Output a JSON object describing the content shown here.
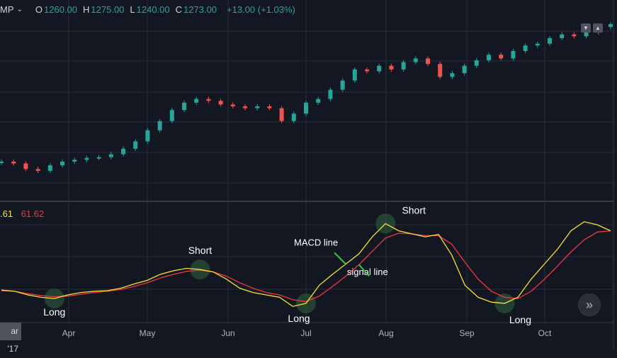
{
  "header": {
    "symbol": "MP",
    "ohlc": [
      {
        "k": "O",
        "v": "1260.00"
      },
      {
        "k": "H",
        "v": "1275.00"
      },
      {
        "k": "L",
        "v": "1240.00"
      },
      {
        "k": "C",
        "v": "1273.00"
      }
    ],
    "change": "+13.00 (+1.03%)"
  },
  "indicator": {
    "macd_value": ".61",
    "signal_value": "61.62"
  },
  "axis": {
    "current_date": "ar '17"
  },
  "chart_data": [
    {
      "type": "line",
      "name": "price",
      "x_ticks": [
        "Apr",
        "May",
        "Jun",
        "Jul",
        "Aug",
        "Sep",
        "Oct"
      ],
      "x": [
        0,
        5,
        10,
        15,
        20,
        25,
        30,
        35,
        40,
        45,
        50,
        55,
        60,
        65,
        70,
        75,
        80,
        85,
        90,
        95,
        100,
        105,
        110,
        115,
        120,
        125,
        130,
        135,
        140,
        145,
        150,
        155,
        160,
        165,
        170,
        175,
        180,
        185,
        190,
        195,
        200,
        205,
        210,
        215,
        220,
        225,
        230,
        235,
        240,
        245,
        250
      ],
      "close": [
        900,
        895,
        880,
        875,
        890,
        900,
        905,
        910,
        912,
        920,
        935,
        955,
        985,
        1010,
        1040,
        1060,
        1070,
        1065,
        1055,
        1050,
        1045,
        1050,
        1045,
        1010,
        1030,
        1060,
        1070,
        1095,
        1120,
        1150,
        1145,
        1160,
        1150,
        1170,
        1180,
        1165,
        1130,
        1140,
        1160,
        1175,
        1190,
        1180,
        1200,
        1215,
        1220,
        1235,
        1245,
        1240,
        1250,
        1265,
        1273
      ],
      "colors": {
        "up": "#26a69a",
        "down": "#ef5350"
      }
    },
    {
      "type": "line",
      "name": "macd",
      "series": [
        {
          "name": "MACD line",
          "color": "#f7e135",
          "values": [
            2,
            0,
            -6,
            -10,
            -12,
            -6,
            -2,
            0,
            1,
            5,
            12,
            18,
            28,
            34,
            38,
            36,
            32,
            20,
            5,
            -2,
            -6,
            -10,
            -25,
            -20,
            10,
            28,
            45,
            62,
            90,
            112,
            100,
            95,
            90,
            94,
            60,
            10,
            -10,
            -18,
            -20,
            -10,
            20,
            45,
            70,
            100,
            115,
            110,
            100
          ]
        },
        {
          "name": "signal line",
          "color": "#f23645",
          "values": [
            1,
            0,
            -4,
            -7,
            -9,
            -8,
            -5,
            -2,
            0,
            3,
            8,
            14,
            22,
            28,
            33,
            35,
            32,
            25,
            14,
            5,
            -2,
            -6,
            -14,
            -17,
            -8,
            8,
            25,
            44,
            66,
            88,
            96,
            95,
            92,
            92,
            78,
            48,
            20,
            0,
            -10,
            -12,
            0,
            20,
            42,
            65,
            85,
            98,
            100
          ]
        }
      ],
      "annotations": [
        {
          "text": "Long",
          "at": 4
        },
        {
          "text": "Short",
          "at": 15
        },
        {
          "text": "Long",
          "at": 23
        },
        {
          "text": "Short",
          "at": 29
        },
        {
          "text": "Long",
          "at": 38
        },
        {
          "text": "MACD line",
          "at": 26
        },
        {
          "text": "signal line",
          "at": 27
        }
      ]
    }
  ]
}
